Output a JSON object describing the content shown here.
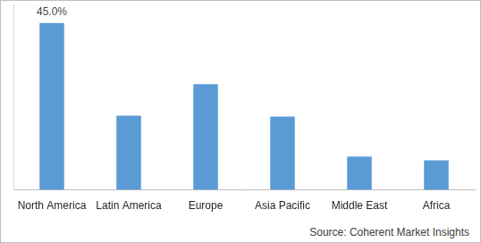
{
  "chart_data": {
    "type": "bar",
    "categories": [
      "North America",
      "Latin America",
      "Europe",
      "Asia Pacific",
      "Middle East",
      "Africa"
    ],
    "values": [
      45.0,
      20,
      28.5,
      19.8,
      9,
      8
    ],
    "value_labels": [
      "45.0%",
      null,
      null,
      null,
      null,
      null
    ],
    "data_labels": true,
    "color": "#5b9bd5",
    "ylim": [
      0,
      50
    ],
    "grid": false,
    "tick_labels": "x",
    "source": "Source: Coherent Market Insights"
  }
}
